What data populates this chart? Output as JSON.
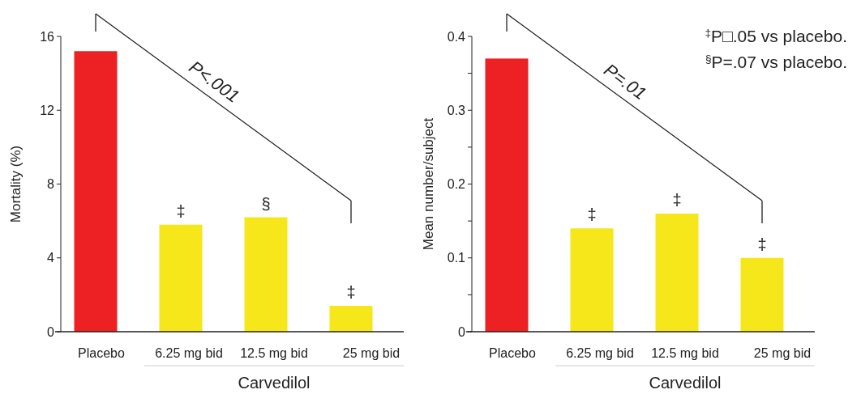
{
  "chart_data": [
    {
      "type": "bar",
      "ylabel": "Mortality (%)",
      "xlabel": "Carvedilol",
      "categories": [
        "Placebo",
        "6.25 mg bid",
        "12.5 mg bid",
        "25 mg bid"
      ],
      "values": [
        15.2,
        5.8,
        6.2,
        1.4
      ],
      "colors": [
        "#ed2024",
        "#f5e71a",
        "#f5e71a",
        "#f5e71a"
      ],
      "ylim": [
        0,
        16
      ],
      "yticks": [
        0,
        4,
        8,
        12,
        16
      ],
      "grid": false,
      "annotations": [
        "P<.001",
        {
          "text": "‡",
          "x": "6.25 mg bid",
          "y": 5.8
        },
        {
          "text": "§",
          "x": "12.5 mg bid",
          "y": 6.2
        },
        {
          "text": "‡",
          "x": "25 mg bid",
          "y": 1.4
        }
      ]
    },
    {
      "type": "bar",
      "ylabel": "Mean number/subject",
      "xlabel": "Carvedilol",
      "categories": [
        "Placebo",
        "6.25 mg bid",
        "12.5 mg bid",
        "25 mg bid"
      ],
      "values": [
        0.37,
        0.14,
        0.16,
        0.1
      ],
      "colors": [
        "#ed2024",
        "#f5e71a",
        "#f5e71a",
        "#f5e71a"
      ],
      "ylim": [
        0,
        0.4
      ],
      "yticks": [
        0,
        {
          "value": 0.05,
          "label": null
        },
        0.1,
        {
          "value": 0.15,
          "label": null
        },
        0.2,
        {
          "value": 0.25,
          "label": null
        },
        0.3,
        {
          "value": 0.35,
          "label": null
        },
        0.4
      ],
      "grid": false,
      "annotations": [
        "P=.01",
        "$^{‡}$P□.05 vs placebo.",
        "$^{§}$P=.07 vs placebo.",
        {
          "text": "‡",
          "x": "6.25 mg bid",
          "y": 0.14
        },
        {
          "text": "‡",
          "x": "12.5 mg bid",
          "y": 0.16
        },
        {
          "text": "‡",
          "x": "25 mg bid",
          "y": 0.1
        }
      ]
    }
  ]
}
